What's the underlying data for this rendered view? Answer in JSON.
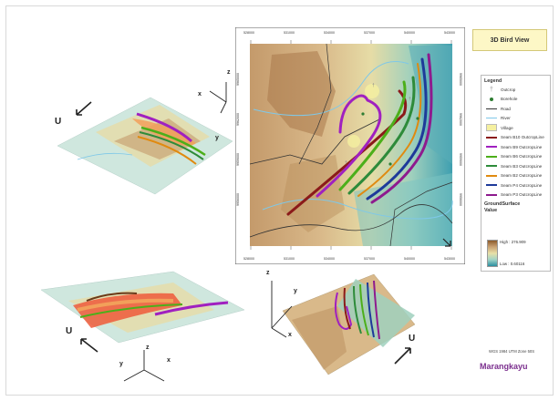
{
  "title": "3D Bird View",
  "brand": "Marangkayu",
  "projection": "WGS 1984 UTM Zone 50S",
  "legend": {
    "heading": "Legend",
    "items": [
      {
        "label": "Outcrop",
        "symbol": "outcrop-icon",
        "color": "#999999"
      },
      {
        "label": "Borehole",
        "symbol": "borehole-icon",
        "color": "#2e7d32"
      },
      {
        "label": "Road",
        "symbol": "road-line",
        "color": "#333333"
      },
      {
        "label": "River",
        "symbol": "river-line",
        "color": "#7fc8e8"
      },
      {
        "label": "Village",
        "symbol": "village-fill",
        "color": "#f5f0a0"
      },
      {
        "label": "Seam B10 OutcropLine",
        "symbol": "seam-line",
        "color": "#8b1a1a"
      },
      {
        "label": "Seam B9 OutcropLine",
        "symbol": "seam-line",
        "color": "#a020c0"
      },
      {
        "label": "Seam B6 OutcropLine",
        "symbol": "seam-line",
        "color": "#4caf1a"
      },
      {
        "label": "Seam B3 OutcropLine",
        "symbol": "seam-line",
        "color": "#2e8b3a"
      },
      {
        "label": "Seam B2 OutcropLine",
        "symbol": "seam-line",
        "color": "#e08a10"
      },
      {
        "label": "Seam P4 OutcropLine",
        "symbol": "seam-line",
        "color": "#1e3a9a"
      },
      {
        "label": "Seam P3 OutcropLine",
        "symbol": "seam-line",
        "color": "#8e1a8e"
      }
    ],
    "surface_heading_1": "GroundSurface",
    "surface_heading_2": "Value",
    "surface_high": "High : 276.909",
    "surface_low": "Low : 0.60116"
  },
  "map_ticks": {
    "top": [
      "528000",
      "531000",
      "534000",
      "537000",
      "540000",
      "543000"
    ],
    "bottom": [
      "528000",
      "531000",
      "534000",
      "537000",
      "540000",
      "543000"
    ],
    "left": [
      "9965000",
      "9962000",
      "9959000",
      "9956000"
    ],
    "right": [
      "9965000",
      "9962000",
      "9959000",
      "9956000"
    ]
  },
  "views": {
    "view1": {
      "north": "U",
      "x": "x",
      "y": "y",
      "z": "z"
    },
    "view2": {
      "north": "U",
      "x": "x",
      "y": "y",
      "z": "z"
    },
    "view3": {
      "north": "U",
      "x": "x",
      "y": "y",
      "z": "z"
    }
  }
}
